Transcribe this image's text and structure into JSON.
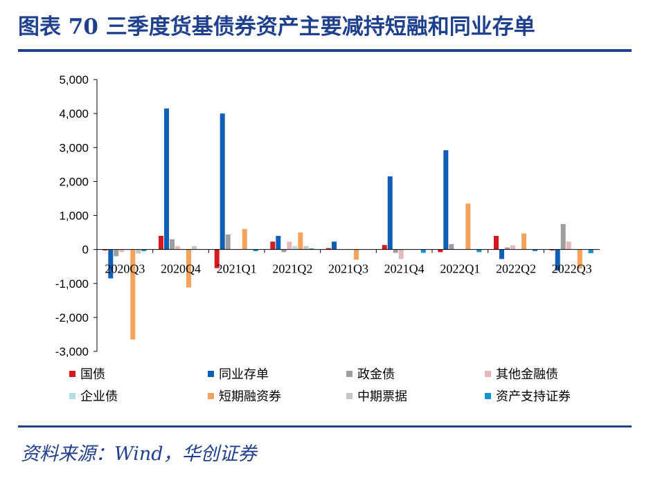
{
  "header": {
    "title": "图表 70  三季度货基债券资产主要减持短融和同业存单"
  },
  "footer": {
    "source": "资料来源：Wind，华创证券"
  },
  "chart_data": {
    "type": "bar",
    "title": "图表 70  三季度货基债券资产主要减持短融和同业存单",
    "categories": [
      "2020Q3",
      "2020Q4",
      "2021Q1",
      "2021Q2",
      "2021Q3",
      "2021Q4",
      "2022Q1",
      "2022Q2",
      "2022Q3"
    ],
    "ylim": [
      -3000,
      5000
    ],
    "yticks": [
      5000,
      4000,
      3000,
      2000,
      1000,
      0,
      -1000,
      -2000,
      -3000
    ],
    "ytick_labels": [
      "5,000",
      "4,000",
      "3,000",
      "2,000",
      "1,000",
      "0",
      "-1,000",
      "-2,000",
      "-3,000"
    ],
    "grid": false,
    "legend_position": "bottom",
    "series": [
      {
        "name": "国债",
        "color": "#d7191c",
        "values": [
          -30,
          400,
          -550,
          230,
          40,
          130,
          -80,
          400,
          -30
        ]
      },
      {
        "name": "同业存单",
        "color": "#0d5fb8",
        "values": [
          -850,
          4150,
          4000,
          400,
          230,
          2150,
          2920,
          -280,
          -620
        ]
      },
      {
        "name": "政金债",
        "color": "#9e9e9e",
        "values": [
          -200,
          300,
          440,
          -80,
          0,
          -100,
          160,
          60,
          750
        ]
      },
      {
        "name": "其他金融债",
        "color": "#e6b8bc",
        "values": [
          -80,
          100,
          0,
          230,
          0,
          -280,
          0,
          120,
          230
        ]
      },
      {
        "name": "企业债",
        "color": "#b5dde6",
        "values": [
          0,
          0,
          0,
          100,
          0,
          0,
          0,
          0,
          0
        ]
      },
      {
        "name": "短期融资券",
        "color": "#f5a25d",
        "values": [
          -2650,
          -1120,
          600,
          500,
          -300,
          0,
          1350,
          470,
          -560
        ]
      },
      {
        "name": "中期票据",
        "color": "#c6c6c6",
        "values": [
          -120,
          100,
          0,
          100,
          0,
          0,
          0,
          0,
          0
        ]
      },
      {
        "name": "资产支持证券",
        "color": "#1790d4",
        "values": [
          -50,
          0,
          -50,
          30,
          0,
          -100,
          -80,
          -50,
          -110
        ]
      }
    ]
  }
}
